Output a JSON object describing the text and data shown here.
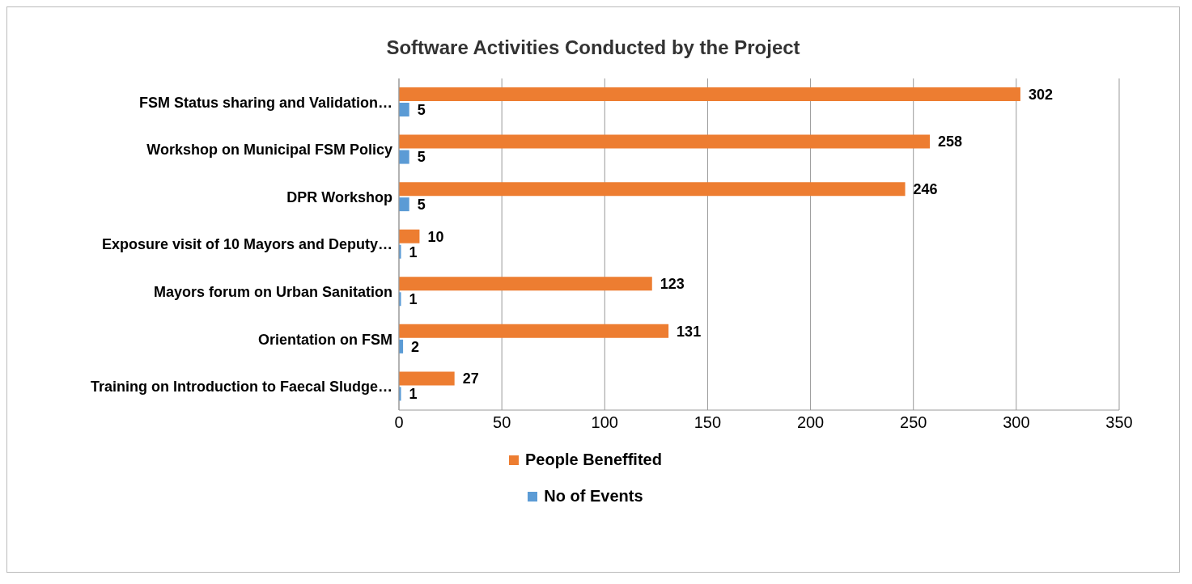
{
  "chart_data": {
    "type": "bar",
    "orientation": "horizontal",
    "title": "Software Activities Conducted by the Project",
    "categories": [
      "FSM Status sharing and Validation…",
      "Workshop on Municipal FSM Policy",
      "DPR Workshop",
      "Exposure visit of 10 Mayors and Deputy…",
      "Mayors forum on Urban Sanitation",
      "Orientation on FSM",
      "Training on Introduction to Faecal Sludge…"
    ],
    "series": [
      {
        "name": "People Beneffited",
        "color": "#ed7d31",
        "values": [
          302,
          258,
          246,
          10,
          123,
          131,
          27
        ]
      },
      {
        "name": "No of Events",
        "color": "#5b9bd5",
        "values": [
          5,
          5,
          5,
          1,
          1,
          2,
          1
        ]
      }
    ],
    "xlim": [
      0,
      350
    ],
    "xticks": [
      0,
      50,
      100,
      150,
      200,
      250,
      300,
      350
    ],
    "grid": "x",
    "legend": "bottom",
    "data_labels": true
  }
}
